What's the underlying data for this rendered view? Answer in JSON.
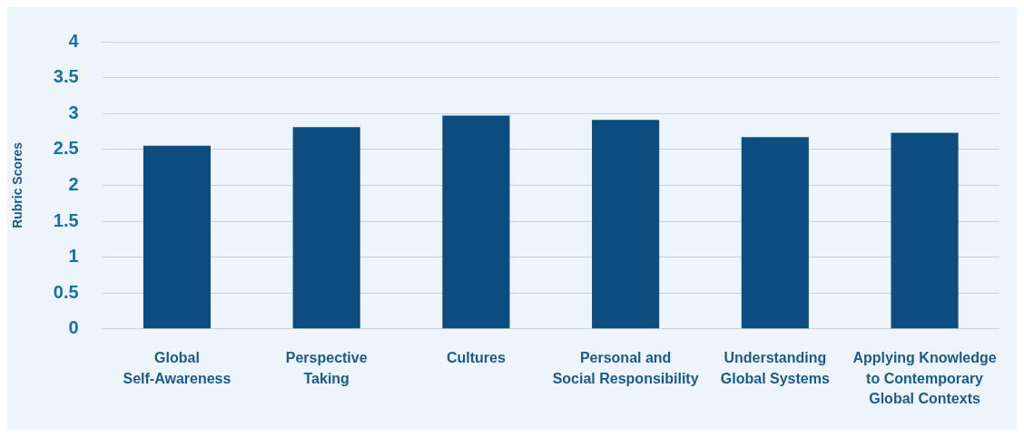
{
  "chart_data": {
    "type": "bar",
    "ylabel": "Rubric Scores",
    "categories": [
      "Global\nSelf-Awareness",
      "Perspective\nTaking",
      "Cultures",
      "Personal and\nSocial Responsibility",
      "Understanding\nGlobal Systems",
      "Applying Knowledge\nto Contemporary\nGlobal Contexts"
    ],
    "values": [
      2.55,
      2.81,
      2.97,
      2.91,
      2.67,
      2.73
    ],
    "color": "#0d4c7e",
    "ylim": [
      0,
      4
    ],
    "yticks": [
      0,
      0.5,
      1,
      1.5,
      2,
      2.5,
      3,
      3.5,
      4
    ],
    "grid": "y",
    "legend": false
  }
}
